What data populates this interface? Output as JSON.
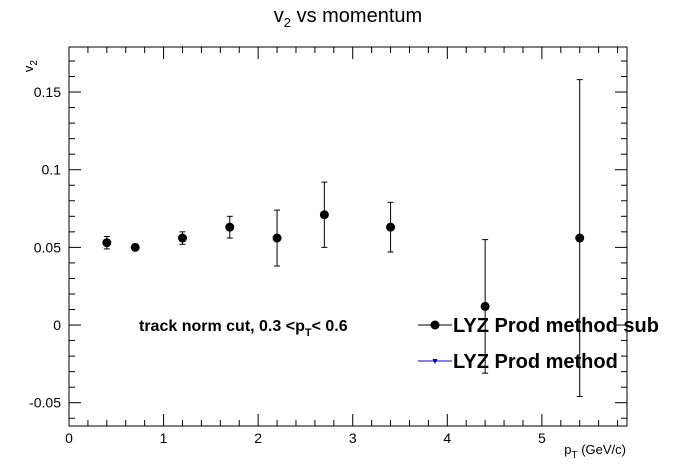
{
  "chart_data": {
    "type": "scatter",
    "title": {
      "main": "v",
      "sub": "2",
      "rest": " vs momentum"
    },
    "xlabel": {
      "main": "p",
      "sub": "T",
      "rest": " (GeV/c)"
    },
    "ylabel": {
      "main": "v",
      "sub": "2"
    },
    "xlim": [
      0,
      5.9
    ],
    "ylim": [
      -0.065,
      0.179
    ],
    "x_ticks": [
      0,
      1,
      2,
      3,
      4,
      5
    ],
    "y_ticks": [
      -0.05,
      0,
      0.05,
      0.1,
      0.15
    ],
    "x_tick_labels": [
      "0",
      "1",
      "2",
      "3",
      "4",
      "5"
    ],
    "y_tick_labels": [
      "-0.05",
      "0",
      "0.05",
      "0.1",
      "0.15"
    ],
    "grid": false,
    "legend_position": "bottom-right",
    "annotation": {
      "main": "track norm cut, 0.3 <p",
      "sub": "T",
      "rest": "< 0.6"
    },
    "series": [
      {
        "name": "LYZ Prod method sub",
        "marker": "circle",
        "color": "#000000",
        "points": [
          {
            "x": 0.4,
            "y": 0.053,
            "err": 0.004
          },
          {
            "x": 0.7,
            "y": 0.05,
            "err": 0.002
          },
          {
            "x": 1.2,
            "y": 0.056,
            "err": 0.004
          },
          {
            "x": 1.7,
            "y": 0.063,
            "err": 0.007
          },
          {
            "x": 2.2,
            "y": 0.056,
            "err": 0.018
          },
          {
            "x": 2.7,
            "y": 0.071,
            "err": 0.021
          },
          {
            "x": 3.4,
            "y": 0.063,
            "err": 0.016
          },
          {
            "x": 4.4,
            "y": 0.012,
            "err": 0.043
          },
          {
            "x": 5.4,
            "y": 0.056,
            "err": 0.102
          }
        ]
      },
      {
        "name": "LYZ Prod method",
        "marker": "triangle-down",
        "color": "#0000cc",
        "points": []
      }
    ]
  }
}
